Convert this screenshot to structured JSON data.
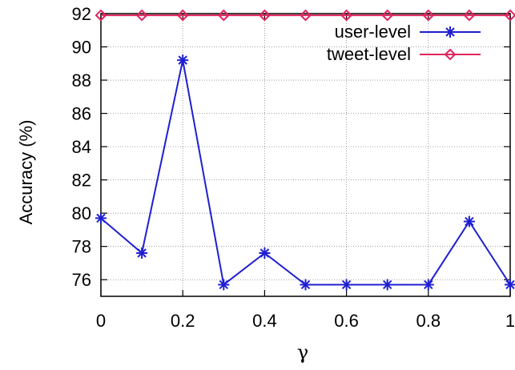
{
  "chart_data": {
    "type": "line",
    "title": "",
    "xlabel": "γ",
    "ylabel": "Accuracy (%)",
    "x": [
      0,
      0.1,
      0.2,
      0.3,
      0.4,
      0.5,
      0.6,
      0.7,
      0.8,
      0.9,
      1.0
    ],
    "xlim": [
      0,
      1
    ],
    "ylim": [
      75,
      92
    ],
    "xticks": [
      0,
      0.2,
      0.4,
      0.6,
      0.8,
      1
    ],
    "xtick_labels": [
      "0",
      "0.2",
      "0.4",
      "0.6",
      "0.8",
      "1"
    ],
    "yticks": [
      76,
      78,
      80,
      82,
      84,
      86,
      88,
      90,
      92
    ],
    "ytick_labels": [
      "76",
      "78",
      "80",
      "82",
      "84",
      "86",
      "88",
      "90",
      "92"
    ],
    "grid": true,
    "legend_position": "top-right",
    "series": [
      {
        "name": "user-level",
        "color": "#1f1fd1",
        "marker": "asterisk",
        "values": [
          79.7,
          77.6,
          89.2,
          75.7,
          77.6,
          75.7,
          75.7,
          75.7,
          75.7,
          79.5,
          75.7
        ]
      },
      {
        "name": "tweet-level",
        "color": "#e0245e",
        "marker": "diamond",
        "values": [
          91.9,
          91.9,
          91.9,
          91.9,
          91.9,
          91.9,
          91.9,
          91.9,
          91.9,
          91.9,
          91.9
        ]
      }
    ]
  }
}
